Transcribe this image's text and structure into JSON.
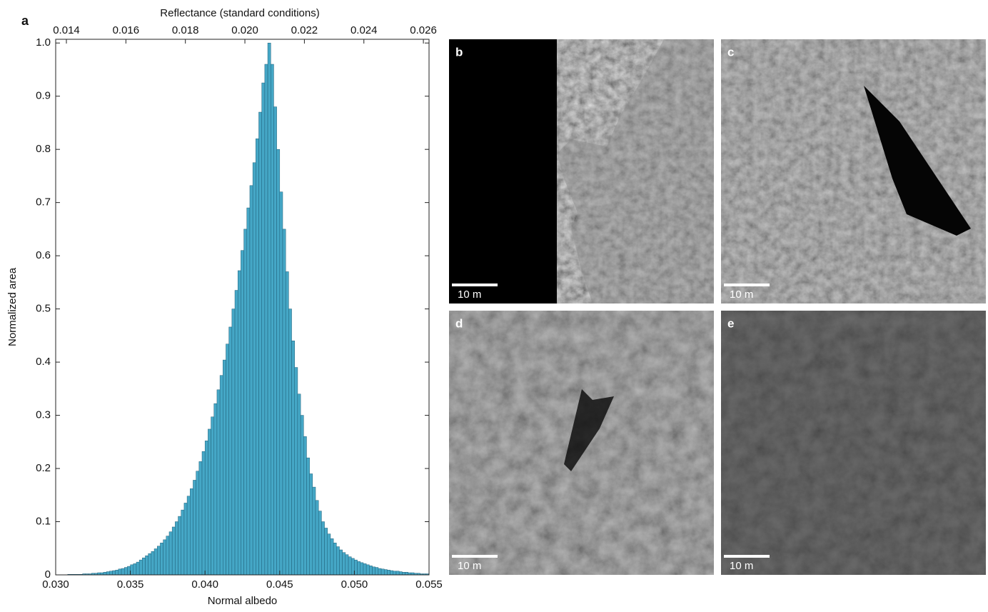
{
  "panel_label": "a",
  "chart_data": {
    "type": "histogram",
    "xlabel": "Normal albedo",
    "x2label": "Reflectance (standard conditions)",
    "ylabel": "Normalized area",
    "color": "#45a7c6",
    "edge_color": "#1f5f78",
    "xlim": [
      0.03,
      0.055
    ],
    "xticks": [
      {
        "value": 0.03,
        "label": "0.030"
      },
      {
        "value": 0.035,
        "label": "0.035"
      },
      {
        "value": 0.04,
        "label": "0.040"
      },
      {
        "value": 0.045,
        "label": "0.045"
      },
      {
        "value": 0.05,
        "label": "0.050"
      },
      {
        "value": 0.055,
        "label": "0.055"
      }
    ],
    "x2lim": [
      0.01364,
      0.02619
    ],
    "x2ticks": [
      0.014,
      0.016,
      0.018,
      {
        "value": 0.02,
        "label": "0.020"
      },
      0.022,
      0.024,
      0.026
    ],
    "ylim": [
      0,
      1.007
    ],
    "yticks": [
      0,
      0.1,
      0.2,
      0.3,
      0.4,
      0.5,
      0.6,
      0.7,
      0.8,
      0.9,
      {
        "value": 1,
        "label": "1.0"
      }
    ],
    "bins": [
      0.03,
      0.0302,
      0.0304,
      0.0306,
      0.0308,
      0.031,
      0.0312,
      0.0314,
      0.0316,
      0.0318,
      0.032,
      0.0322,
      0.0324,
      0.0326,
      0.0328,
      0.033,
      0.0332,
      0.0334,
      0.0336,
      0.0338,
      0.034,
      0.0342,
      0.0344,
      0.0346,
      0.0348,
      0.035,
      0.0352,
      0.0354,
      0.0356,
      0.0358,
      0.036,
      0.0362,
      0.0364,
      0.0366,
      0.0368,
      0.037,
      0.0372,
      0.0374,
      0.0376,
      0.0378,
      0.038,
      0.0382,
      0.0384,
      0.0386,
      0.0388,
      0.039,
      0.0392,
      0.0394,
      0.0396,
      0.0398,
      0.04,
      0.0402,
      0.0404,
      0.0406,
      0.0408,
      0.041,
      0.0412,
      0.0414,
      0.0416,
      0.0418,
      0.042,
      0.0422,
      0.0424,
      0.0426,
      0.0428,
      0.043,
      0.0432,
      0.0434,
      0.0436,
      0.0438,
      0.044,
      0.0442,
      0.0444,
      0.0446,
      0.0448,
      0.045,
      0.0452,
      0.0454,
      0.0456,
      0.0458,
      0.046,
      0.0462,
      0.0464,
      0.0466,
      0.0468,
      0.047,
      0.0472,
      0.0474,
      0.0476,
      0.0478,
      0.048,
      0.0482,
      0.0484,
      0.0486,
      0.0488,
      0.049,
      0.0492,
      0.0494,
      0.0496,
      0.0498,
      0.05,
      0.0502,
      0.0504,
      0.0506,
      0.0508,
      0.051,
      0.0512,
      0.0514,
      0.0516,
      0.0518,
      0.052,
      0.0522,
      0.0524,
      0.0526,
      0.0528,
      0.053,
      0.0532,
      0.0534,
      0.0536,
      0.0538,
      0.054,
      0.0542,
      0.0544,
      0.0546,
      0.0548,
      0.055
    ],
    "values": [
      0,
      0,
      0,
      0,
      0.001,
      0.001,
      0.001,
      0.001,
      0.001,
      0.002,
      0.002,
      0.002,
      0.003,
      0.003,
      0.004,
      0.004,
      0.005,
      0.006,
      0.007,
      0.008,
      0.009,
      0.011,
      0.012,
      0.014,
      0.016,
      0.019,
      0.021,
      0.024,
      0.028,
      0.032,
      0.036,
      0.04,
      0.044,
      0.049,
      0.054,
      0.06,
      0.066,
      0.073,
      0.081,
      0.09,
      0.1,
      0.11,
      0.122,
      0.135,
      0.148,
      0.162,
      0.178,
      0.195,
      0.213,
      0.232,
      0.252,
      0.274,
      0.297,
      0.322,
      0.348,
      0.375,
      0.404,
      0.434,
      0.466,
      0.5,
      0.535,
      0.572,
      0.61,
      0.65,
      0.69,
      0.732,
      0.775,
      0.82,
      0.87,
      0.925,
      0.96,
      1.0,
      0.96,
      0.88,
      0.8,
      0.72,
      0.65,
      0.57,
      0.5,
      0.44,
      0.39,
      0.34,
      0.3,
      0.26,
      0.22,
      0.19,
      0.165,
      0.14,
      0.12,
      0.1,
      0.088,
      0.077,
      0.068,
      0.06,
      0.053,
      0.047,
      0.042,
      0.038,
      0.034,
      0.031,
      0.028,
      0.025,
      0.023,
      0.021,
      0.019,
      0.017,
      0.015,
      0.014,
      0.012,
      0.011,
      0.01,
      0.009,
      0.008,
      0.007,
      0.007,
      0.006,
      0.005,
      0.005,
      0.004,
      0.004,
      0.003,
      0.003,
      0.002,
      0.002,
      0.002
    ]
  },
  "images": [
    {
      "label": "b",
      "scale": "10 m"
    },
    {
      "label": "c",
      "scale": "10 m"
    },
    {
      "label": "d",
      "scale": "10 m"
    },
    {
      "label": "e",
      "scale": "10 m"
    }
  ]
}
